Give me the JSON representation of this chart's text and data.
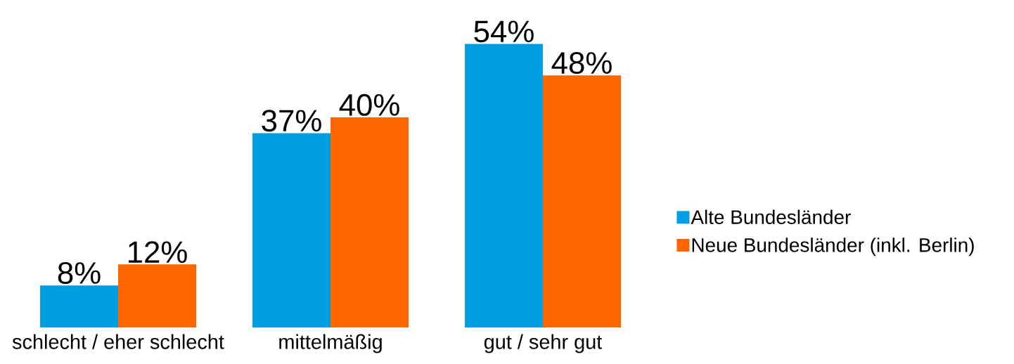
{
  "chart_data": {
    "type": "bar",
    "categories": [
      "schlecht / eher schlecht",
      "mittelmäßig",
      "gut / sehr gut"
    ],
    "series": [
      {
        "name": "Alte Bundesländer",
        "color": "#009fe3",
        "values": [
          8,
          37,
          54
        ],
        "value_labels": [
          "8%",
          "37%",
          "54%"
        ]
      },
      {
        "name": "Neue Bundesländer (inkl. Berlin)",
        "color": "#ff6600",
        "values": [
          12,
          40,
          48
        ],
        "value_labels": [
          "12%",
          "40%",
          "48%"
        ]
      }
    ],
    "legend": "right"
  }
}
